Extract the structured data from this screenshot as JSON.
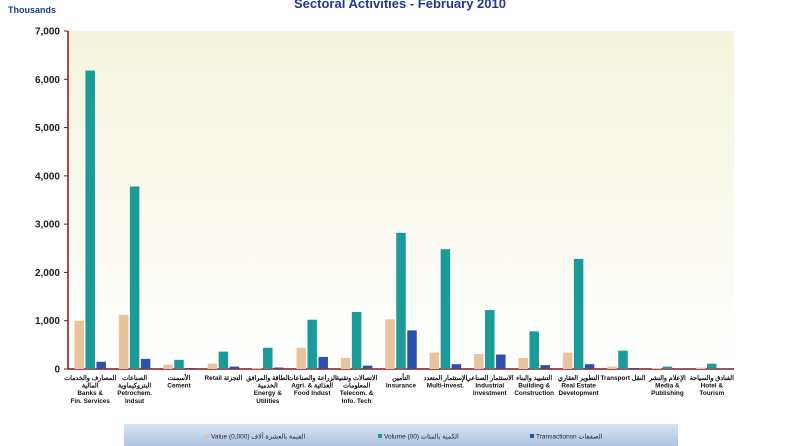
{
  "chart_data": {
    "type": "bar",
    "title": "Sectoral Activities - February 2010",
    "units_label": "Thousands",
    "ylim": [
      0,
      7000
    ],
    "yticks": [
      "0",
      "1,000",
      "2,000",
      "3,000",
      "4,000",
      "5,000",
      "6,000",
      "7,000"
    ],
    "ytick_values": [
      0,
      1000,
      2000,
      3000,
      4000,
      5000,
      6000,
      7000
    ],
    "grid": false,
    "legend_position": "bottom",
    "categories": [
      [
        "المصارف والخدمات",
        "المالية",
        "Banks &",
        "Fin. Services"
      ],
      [
        "الصناعات",
        "البتروكيماوية",
        "Petrochem.",
        "Indsut"
      ],
      [
        "الأسمنت",
        "Cement"
      ],
      [
        "Retail  التجزئة"
      ],
      [
        "الطاقة والمرافق",
        "الخدمية",
        "Energy &",
        "Utilities"
      ],
      [
        "الزراعة والصناعات",
        "Agri. &  الغذائية",
        "Food Indust"
      ],
      [
        "الاتصالات وتقنية",
        "المعلومات",
        "Telecom. &",
        "Info. Tech"
      ],
      [
        "التأمين",
        "Insurance"
      ],
      [
        "الإستثمار المتعدد",
        "Multi-Invest."
      ],
      [
        "الاستثمار الصناعي",
        "Industrial",
        "Investment"
      ],
      [
        "التشييد والبناء",
        "Building &",
        "Construction"
      ],
      [
        "التطوير العقاري",
        "Real Estate",
        "Development"
      ],
      [
        "Transport  النقل"
      ],
      [
        "الإعلام والنشر",
        "Media &",
        "Publishing"
      ],
      [
        "الفنادق والسياحة",
        "Hotel &",
        "Tourism"
      ]
    ],
    "series": [
      {
        "name": "Value  القيمة بالعشرة آلاف  (0,000)",
        "color": "#e8c49e",
        "values": [
          1000,
          1120,
          90,
          110,
          20,
          440,
          230,
          1030,
          340,
          310,
          230,
          340,
          50,
          20,
          30
        ]
      },
      {
        "name": "Volume (00)  الكمية بالمئات",
        "color": "#1a9a99",
        "values": [
          6180,
          3780,
          190,
          360,
          440,
          1020,
          1180,
          2820,
          2480,
          1220,
          780,
          2280,
          380,
          50,
          110
        ]
      },
      {
        "name": "Transactionsn  الصفقات",
        "color": "#2d4fae",
        "values": [
          150,
          210,
          20,
          50,
          30,
          250,
          70,
          800,
          100,
          300,
          80,
          100,
          20,
          10,
          10
        ]
      }
    ]
  }
}
